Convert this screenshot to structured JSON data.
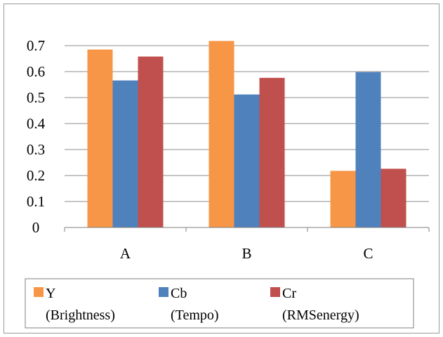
{
  "chart_data": {
    "type": "bar",
    "categories": [
      "A",
      "B",
      "C"
    ],
    "series": [
      {
        "name_line1": "Y",
        "name_line2": "(Brightness)",
        "color": "#f79646",
        "values": [
          0.685,
          0.718,
          0.218
        ]
      },
      {
        "name_line1": "Cb",
        "name_line2": "(Tempo)",
        "color": "#4f81bd",
        "values": [
          0.566,
          0.512,
          0.598
        ]
      },
      {
        "name_line1": "Cr",
        "name_line2": "(RMSenergy)",
        "color": "#c0504d",
        "values": [
          0.658,
          0.576,
          0.226
        ]
      }
    ],
    "ylim": [
      0,
      0.7
    ],
    "y_ticks": [
      "0",
      "0.1",
      "0.2",
      "0.3",
      "0.4",
      "0.5",
      "0.6",
      "0.7"
    ],
    "grid": true,
    "legend_placement": "bottom"
  }
}
